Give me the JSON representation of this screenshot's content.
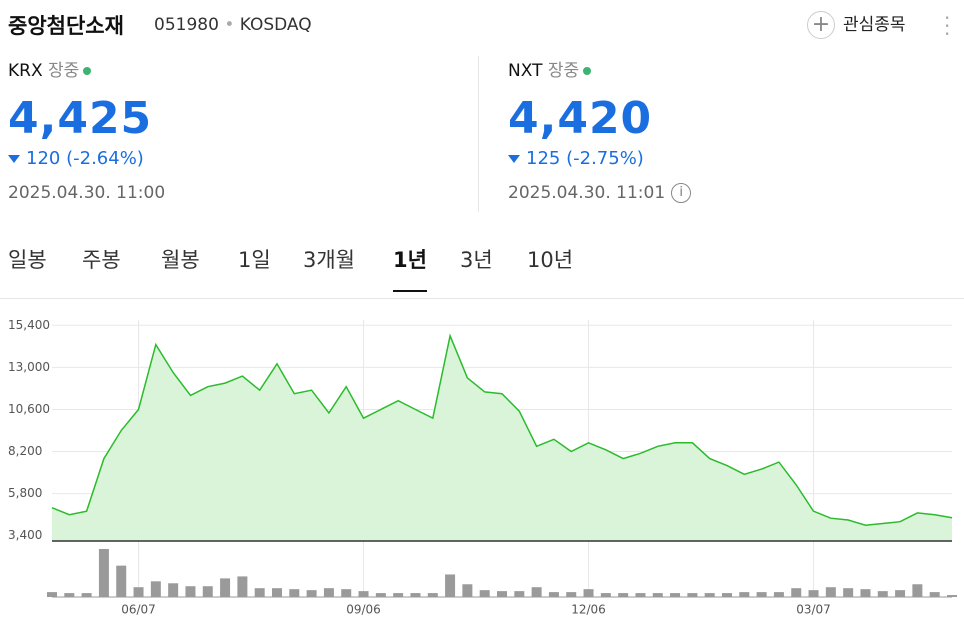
{
  "header": {
    "name": "중앙첨단소재",
    "code": "051980",
    "market": "KOSDAQ",
    "watch": "관심종목"
  },
  "quotes": [
    {
      "venue": "KRX",
      "status": "장중",
      "price": "4,425",
      "change": "120",
      "pct": "(-2.64%)",
      "time": "2025.04.30. 11:00"
    },
    {
      "venue": "NXT",
      "status": "장중",
      "price": "4,420",
      "change": "125",
      "pct": "(-2.75%)",
      "time": "2025.04.30. 11:01"
    }
  ],
  "tabs": [
    "일봉",
    "주봉",
    "월봉",
    "1일",
    "3개월",
    "1년",
    "3년",
    "10년"
  ],
  "active_tab": 5,
  "chart_data": {
    "type": "area",
    "categories": [
      null,
      null,
      null,
      null,
      null,
      "06/07",
      null,
      null,
      null,
      null,
      null,
      null,
      null,
      null,
      null,
      null,
      null,
      null,
      "09/06",
      null,
      null,
      null,
      null,
      null,
      null,
      null,
      null,
      null,
      null,
      null,
      null,
      "12/06",
      null,
      null,
      null,
      null,
      null,
      null,
      null,
      null,
      null,
      null,
      null,
      null,
      "03/07",
      null,
      null,
      null,
      null,
      null,
      null,
      null,
      null
    ],
    "series": [
      {
        "color": "#2bbb2b",
        "fill": "#d9f4d9",
        "values": [
          5000,
          4600,
          4800,
          7800,
          9400,
          10600,
          14300,
          12700,
          11400,
          11900,
          12100,
          12500,
          11700,
          13200,
          11500,
          11700,
          10400,
          11900,
          10100,
          10600,
          11100,
          10600,
          10100,
          14800,
          12400,
          11600,
          11500,
          10500,
          8500,
          8900,
          8200,
          8700,
          8300,
          7800,
          8100,
          8500,
          8700,
          8700,
          7800,
          7400,
          6900,
          7200,
          7600,
          6300,
          4800,
          4400,
          4300,
          4000,
          4100,
          4200,
          4700,
          4600,
          4425
        ]
      },
      {
        "color": "#9a9a9a",
        "axis": "y2",
        "values": [
          5,
          4,
          4,
          49,
          32,
          10,
          16,
          14,
          11,
          11,
          19,
          21,
          9,
          9,
          8,
          7,
          9,
          8,
          6,
          4,
          4,
          4,
          4,
          23,
          13,
          7,
          6,
          6,
          10,
          5,
          5,
          8,
          4,
          4,
          4,
          4,
          4,
          4,
          4,
          4,
          5,
          5,
          5,
          9,
          7,
          10,
          9,
          8,
          6,
          7,
          13,
          5,
          2
        ]
      }
    ],
    "ylim": [
      3100,
      15700
    ],
    "yticks": [
      {
        "value": 3400,
        "label": "3,400"
      },
      {
        "value": 5800,
        "label": "5,800"
      },
      {
        "value": 8200,
        "label": "8,200"
      },
      {
        "value": 10600,
        "label": "10,600"
      },
      {
        "value": 13000,
        "label": "13,000"
      },
      {
        "value": 15400,
        "label": "15,400"
      }
    ],
    "y2lim": [
      0,
      50
    ],
    "grid": true
  }
}
